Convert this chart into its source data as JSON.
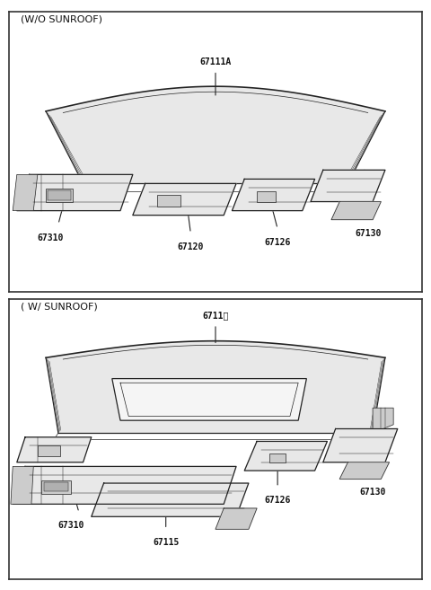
{
  "bg_color": "#ffffff",
  "border_color": "#333333",
  "line_color": "#222222",
  "text_color": "#111111",
  "gray_fill": "#e8e8e8",
  "dark_fill": "#cccccc",
  "panel1_title": "(W/O SUNROOF)",
  "panel2_title": "( W/ SUNROOF)",
  "font_size_title": 8,
  "font_size_label": 7,
  "lw_main": 0.9,
  "lw_detail": 0.5
}
